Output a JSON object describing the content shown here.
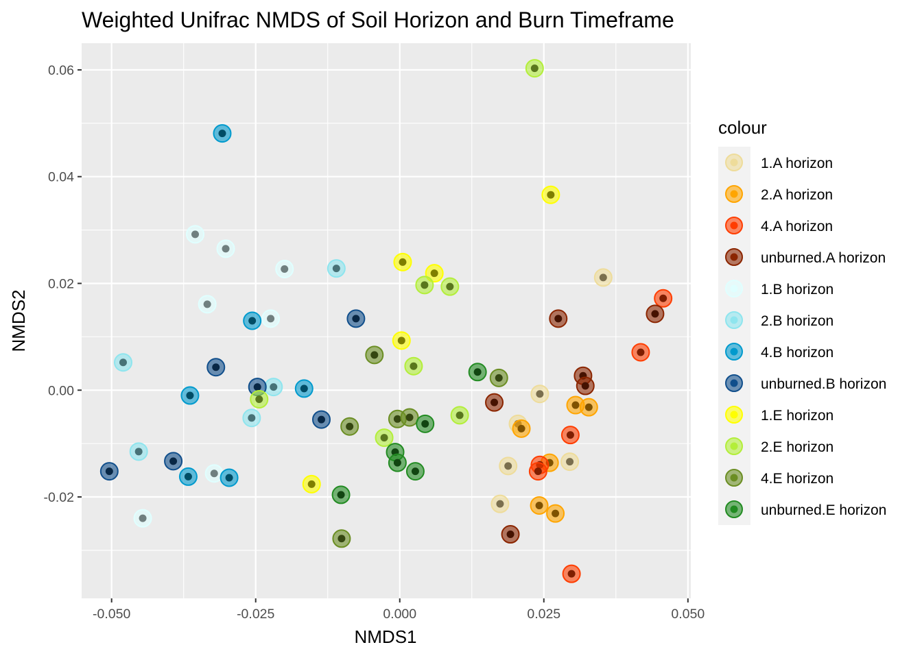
{
  "chart_data": {
    "type": "scatter",
    "title": "Weighted Unifrac NMDS of Soil Horizon and Burn Timeframe",
    "xlabel": "NMDS1",
    "ylabel": "NMDS2",
    "xlim": [
      -0.0552,
      0.0505
    ],
    "ylim": [
      -0.039,
      0.065
    ],
    "x_ticks": [
      -0.05,
      -0.025,
      0.0,
      0.025,
      0.05
    ],
    "x_tick_labels": [
      "-0.050",
      "-0.025",
      "0.000",
      "0.025",
      "0.050"
    ],
    "y_ticks": [
      -0.02,
      0.0,
      0.02,
      0.04,
      0.06
    ],
    "y_tick_labels": [
      "-0.02",
      "0.00",
      "0.02",
      "0.04",
      "0.06"
    ],
    "grid": true,
    "legend": {
      "title": "colour",
      "position": "right"
    },
    "series": [
      {
        "name": "1.A horizon",
        "color": "#EEDC9A",
        "dot": "#7A6F4E",
        "points": [
          [
            0.0353,
            0.0211
          ],
          [
            0.0243,
            -0.0007
          ],
          [
            0.0205,
            -0.0063
          ],
          [
            0.0188,
            -0.0142
          ],
          [
            0.0174,
            -0.0213
          ],
          [
            0.0295,
            -0.0134
          ]
        ]
      },
      {
        "name": "2.A horizon",
        "color": "#FFA500",
        "dot": "#7F5200",
        "points": [
          [
            0.0305,
            -0.0028
          ],
          [
            0.0328,
            -0.0032
          ],
          [
            0.0211,
            -0.0072
          ],
          [
            0.026,
            -0.0136
          ],
          [
            0.0242,
            -0.0216
          ],
          [
            0.027,
            -0.0231
          ]
        ]
      },
      {
        "name": "4.A horizon",
        "color": "#FF3D00",
        "dot": "#7F1E00",
        "points": [
          [
            0.0457,
            0.0172
          ],
          [
            0.0418,
            0.0071
          ],
          [
            0.0296,
            -0.0084
          ],
          [
            0.0243,
            -0.014
          ],
          [
            0.024,
            -0.0152
          ],
          [
            0.0298,
            -0.0344
          ]
        ]
      },
      {
        "name": "unburned.A horizon",
        "color": "#8B2500",
        "dot": "#451200",
        "points": [
          [
            0.0275,
            0.0134
          ],
          [
            0.0443,
            0.0143
          ],
          [
            0.0318,
            0.0027
          ],
          [
            0.0322,
            0.0008
          ],
          [
            0.0164,
            -0.0023
          ],
          [
            0.0192,
            -0.027
          ]
        ]
      },
      {
        "name": "1.B horizon",
        "color": "#E0FFFF",
        "dot": "#707F7F",
        "points": [
          [
            -0.0355,
            0.0292
          ],
          [
            -0.0302,
            0.0265
          ],
          [
            -0.0334,
            0.0161
          ],
          [
            -0.02,
            0.0227
          ],
          [
            -0.0224,
            0.0134
          ],
          [
            -0.0322,
            -0.0156
          ],
          [
            -0.0446,
            -0.024
          ]
        ]
      },
      {
        "name": "2.B horizon",
        "color": "#8EE5EE",
        "dot": "#477277",
        "points": [
          [
            -0.048,
            0.0052
          ],
          [
            -0.011,
            0.0228
          ],
          [
            -0.0219,
            0.0006
          ],
          [
            -0.0257,
            -0.0052
          ],
          [
            -0.0453,
            -0.0115
          ]
        ]
      },
      {
        "name": "4.B horizon",
        "color": "#009ACD",
        "dot": "#004D66",
        "points": [
          [
            -0.0308,
            0.0481
          ],
          [
            -0.0256,
            0.013
          ],
          [
            -0.0364,
            -0.001
          ],
          [
            -0.0166,
            0.0003
          ],
          [
            -0.0367,
            -0.0162
          ],
          [
            -0.0296,
            -0.0164
          ]
        ]
      },
      {
        "name": "unburned.B horizon",
        "color": "#104E8B",
        "dot": "#082745",
        "points": [
          [
            -0.0076,
            0.0134
          ],
          [
            -0.0319,
            0.0043
          ],
          [
            -0.0247,
            0.0006
          ],
          [
            -0.0136,
            -0.0055
          ],
          [
            -0.0393,
            -0.0133
          ],
          [
            -0.0504,
            -0.0152
          ]
        ]
      },
      {
        "name": "1.E horizon",
        "color": "#FFFF00",
        "dot": "#7F7F00",
        "points": [
          [
            0.0262,
            0.0366
          ],
          [
            0.0005,
            0.024
          ],
          [
            0.006,
            0.0219
          ],
          [
            0.0003,
            0.0093
          ],
          [
            -0.0153,
            -0.0176
          ]
        ]
      },
      {
        "name": "2.E horizon",
        "color": "#B3EE3A",
        "dot": "#59771D",
        "points": [
          [
            0.0234,
            0.0603
          ],
          [
            0.0043,
            0.0197
          ],
          [
            0.0087,
            0.0194
          ],
          [
            0.0024,
            0.0045
          ],
          [
            -0.0244,
            -0.0017
          ],
          [
            0.0104,
            -0.0047
          ],
          [
            -0.0027,
            -0.0089
          ]
        ]
      },
      {
        "name": "4.E horizon",
        "color": "#6B8E23",
        "dot": "#354711",
        "points": [
          [
            -0.0044,
            0.0066
          ],
          [
            0.0172,
            0.0023
          ],
          [
            -0.0004,
            -0.0054
          ],
          [
            0.0017,
            -0.0051
          ],
          [
            -0.0087,
            -0.0068
          ],
          [
            -0.0101,
            -0.0278
          ]
        ]
      },
      {
        "name": "unburned.E horizon",
        "color": "#228B22",
        "dot": "#114511",
        "points": [
          [
            0.0135,
            0.0034
          ],
          [
            0.0044,
            -0.0063
          ],
          [
            -0.0008,
            -0.0116
          ],
          [
            -0.0004,
            -0.0136
          ],
          [
            0.0027,
            -0.0152
          ],
          [
            -0.0102,
            -0.0196
          ]
        ]
      }
    ]
  }
}
